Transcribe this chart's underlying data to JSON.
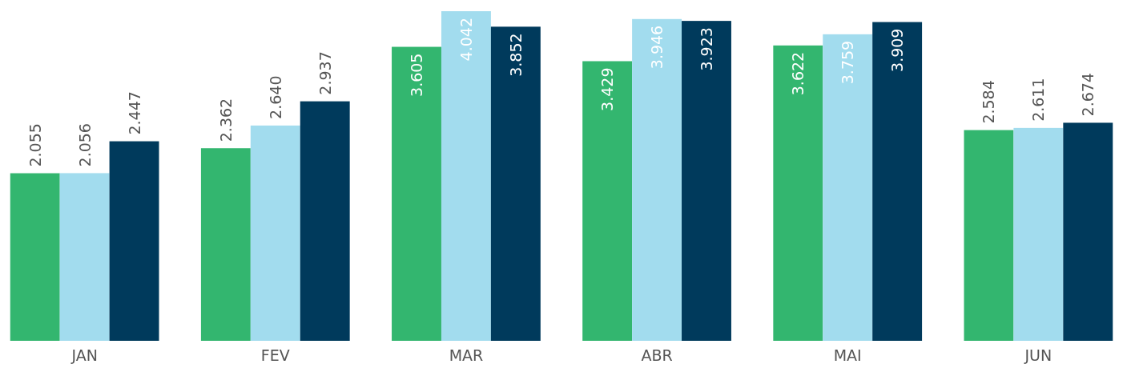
{
  "chart_data": {
    "type": "bar",
    "categories": [
      "JAN",
      "FEV",
      "MAR",
      "ABR",
      "MAI",
      "JUN"
    ],
    "series": [
      {
        "color": "#33b66f",
        "values": [
          2.055,
          2.362,
          3.605,
          3.429,
          3.622,
          2.584
        ],
        "value_labels": [
          "2.055",
          "2.362",
          "3.605",
          "3.429",
          "3.622",
          "2.584"
        ]
      },
      {
        "color": "#a2dcee",
        "values": [
          2.056,
          2.64,
          4.042,
          3.946,
          3.759,
          2.611
        ],
        "value_labels": [
          "2.056",
          "2.640",
          "4.042",
          "3.946",
          "3.759",
          "2.611"
        ]
      },
      {
        "color": "#003a5c",
        "values": [
          2.447,
          2.937,
          3.852,
          3.923,
          3.909,
          2.674
        ],
        "value_labels": [
          "2.447",
          "2.937",
          "3.852",
          "3.923",
          "3.909",
          "2.674"
        ]
      }
    ]
  }
}
